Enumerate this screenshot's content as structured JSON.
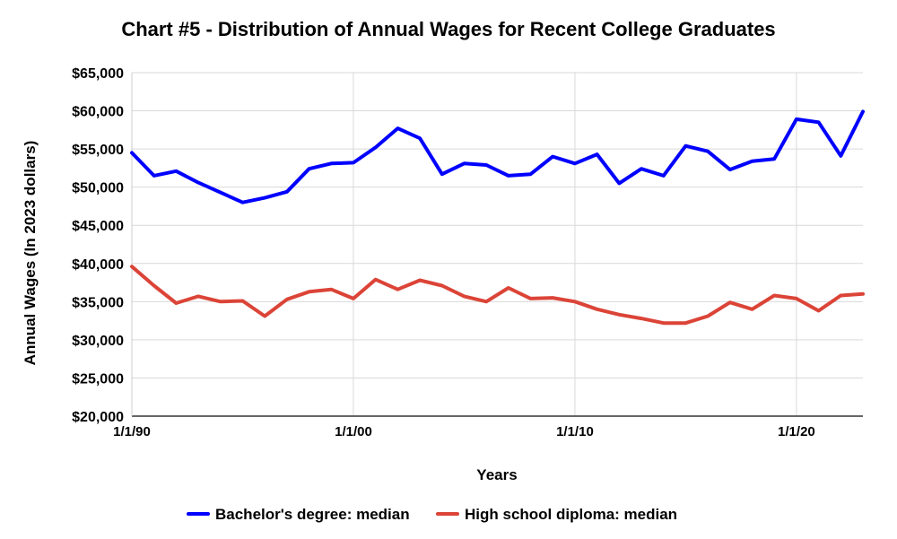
{
  "chart_data": {
    "type": "line",
    "title": "Chart #5 - Distribution of Annual Wages for Recent College Graduates",
    "xlabel": "Years",
    "ylabel": "Annual Wages (In 2023 dollars)",
    "ylim": [
      20000,
      65000
    ],
    "xlim": [
      1990,
      2023
    ],
    "y_ticks": [
      {
        "value": 20000,
        "label": "$20,000"
      },
      {
        "value": 25000,
        "label": "$25,000"
      },
      {
        "value": 30000,
        "label": "$30,000"
      },
      {
        "value": 35000,
        "label": "$35,000"
      },
      {
        "value": 40000,
        "label": "$40,000"
      },
      {
        "value": 45000,
        "label": "$45,000"
      },
      {
        "value": 50000,
        "label": "$50,000"
      },
      {
        "value": 55000,
        "label": "$55,000"
      },
      {
        "value": 60000,
        "label": "$60,000"
      },
      {
        "value": 65000,
        "label": "$65,000"
      }
    ],
    "x_ticks": [
      {
        "value": 1990,
        "label": "1/1/90"
      },
      {
        "value": 2000,
        "label": "1/1/00"
      },
      {
        "value": 2010,
        "label": "1/1/10"
      },
      {
        "value": 2020,
        "label": "1/1/20"
      }
    ],
    "grid": true,
    "legend_position": "bottom",
    "x": [
      1990,
      1991,
      1992,
      1993,
      1994,
      1995,
      1996,
      1997,
      1998,
      1999,
      2000,
      2001,
      2002,
      2003,
      2004,
      2005,
      2006,
      2007,
      2008,
      2009,
      2010,
      2011,
      2012,
      2013,
      2014,
      2015,
      2016,
      2017,
      2018,
      2019,
      2020,
      2021,
      2022,
      2023
    ],
    "series": [
      {
        "name": "Bachelor's degree: median",
        "color": "#0000ff",
        "values": [
          54500,
          51500,
          52100,
          50600,
          49300,
          48000,
          48600,
          49400,
          52400,
          53100,
          53200,
          55200,
          57700,
          56400,
          51700,
          53100,
          52900,
          51500,
          51700,
          54000,
          53100,
          54300,
          50500,
          52400,
          51500,
          55400,
          54700,
          52300,
          53400,
          53700,
          58900,
          58500,
          54100,
          59900
        ]
      },
      {
        "name": "High school diploma: median",
        "color": "#db4437",
        "values": [
          39600,
          37100,
          34800,
          35700,
          35000,
          35100,
          33100,
          35300,
          36300,
          36600,
          35400,
          37900,
          36600,
          37800,
          37100,
          35700,
          35000,
          36800,
          35400,
          35500,
          35000,
          34000,
          33300,
          32800,
          32200,
          32200,
          33100,
          34900,
          34000,
          35800,
          35400,
          33800,
          35800,
          36000
        ]
      }
    ]
  }
}
